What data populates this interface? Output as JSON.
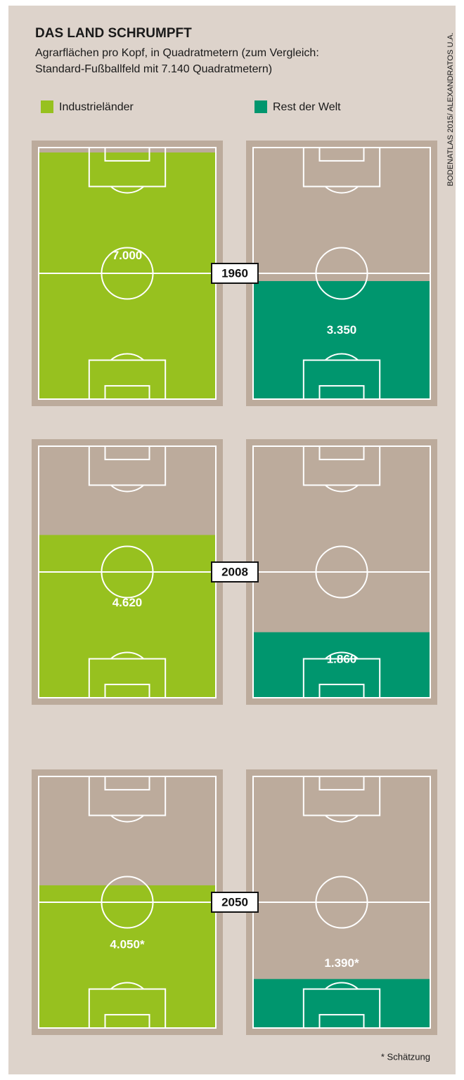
{
  "chart_data": {
    "type": "field-fill",
    "title": "DAS LAND SCHRUMPFT",
    "subtitle": [
      "Agrarflächen pro Kopf, in Quadratmetern (zum Vergleich:",
      "Standard-Fußballfeld mit 7.140 Quadratmetern)"
    ],
    "source": "BODENATLAS 2015/ ALEXANDRATOS U.A.",
    "note": "* Schätzung",
    "categories": [
      "1960",
      "2008",
      "2050"
    ],
    "ylim": [
      0,
      7140
    ],
    "field_color": "#bcab9c",
    "series": [
      {
        "name": "Industrieländer",
        "color": "#97c11f",
        "values": [
          7000,
          4620,
          4050
        ],
        "value_labels": [
          "7.000",
          "4.620",
          "4.050*"
        ]
      },
      {
        "name": "Rest der Welt",
        "color": "#00966e",
        "values": [
          3350,
          1860,
          1390
        ],
        "value_labels": [
          "3.350",
          "1.860",
          "1.390*"
        ]
      }
    ]
  }
}
